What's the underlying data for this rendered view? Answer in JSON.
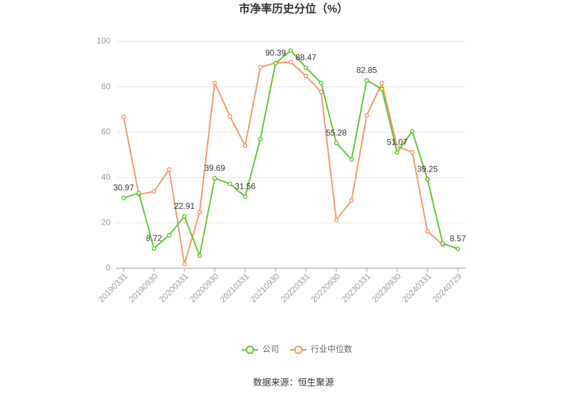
{
  "chart_data": {
    "type": "line",
    "title": "市净率历史分位（%）",
    "categories": [
      "20190331",
      null,
      "20190930",
      null,
      "20200331",
      null,
      "20200930",
      null,
      "20210331",
      null,
      "20210930",
      null,
      "20220331",
      null,
      "20220930",
      null,
      "20230331",
      null,
      "20230930",
      null,
      "20240331",
      null,
      "20240729"
    ],
    "series": [
      {
        "name": "公司",
        "color": "#5cc72c",
        "values": [
          30.97,
          33.2,
          8.72,
          14.6,
          22.91,
          5.5,
          39.69,
          37.2,
          31.56,
          57,
          90.39,
          96,
          88.47,
          81.7,
          55.28,
          47.9,
          82.85,
          79,
          51.07,
          60.4,
          39.25,
          11,
          8.57
        ],
        "value_labels": [
          "30.97",
          null,
          "8.72",
          null,
          "22.91",
          null,
          "39.69",
          null,
          "31.56",
          null,
          "90.39",
          null,
          "88.47",
          null,
          "55.28",
          null,
          "82.85",
          null,
          "51.07",
          null,
          "39.25",
          null,
          "8.57"
        ]
      },
      {
        "name": "行业中位数",
        "color": "#f5956a",
        "values": [
          66.8,
          32.6,
          33.8,
          43.6,
          1.8,
          24.7,
          81.7,
          67,
          54,
          88.7,
          90.5,
          90.9,
          84.8,
          77.7,
          21.3,
          29.9,
          67.4,
          81.7,
          53.7,
          51.2,
          16.2,
          10.4,
          null
        ]
      }
    ],
    "ylim": [
      0,
      100
    ],
    "yticks": [
      0,
      20,
      40,
      60,
      80,
      100
    ],
    "grid": true,
    "legend": "bottom",
    "source": "数据来源：恒生聚源"
  }
}
